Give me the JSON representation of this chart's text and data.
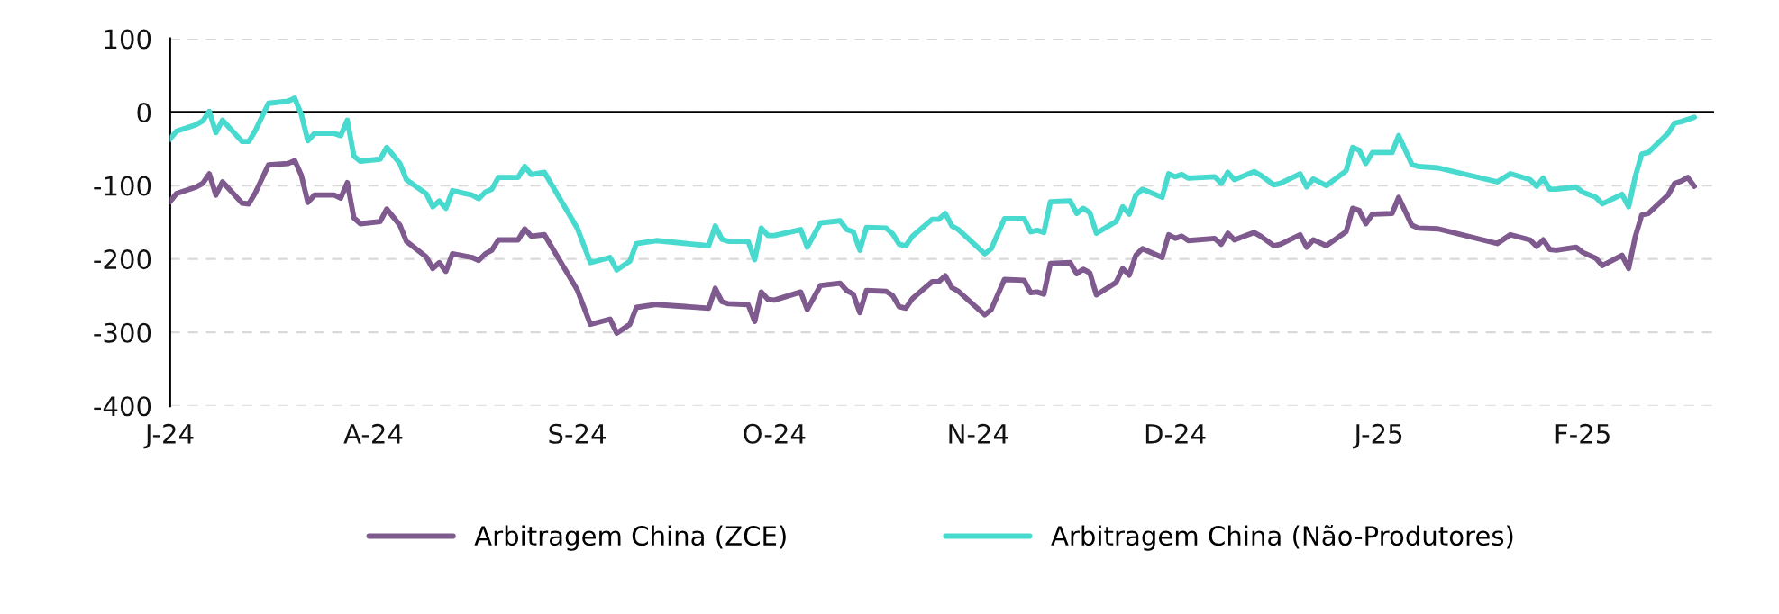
{
  "chart_data": {
    "type": "line",
    "xlim": [
      "2024-07-01",
      "2025-02-21"
    ],
    "xticks": [
      {
        "value": "2024-07-01",
        "label": "J-24"
      },
      {
        "value": "2024-08-01",
        "label": "A-24"
      },
      {
        "value": "2024-09-01",
        "label": "S-24"
      },
      {
        "value": "2024-10-01",
        "label": "O-24"
      },
      {
        "value": "2024-11-01",
        "label": "N-24"
      },
      {
        "value": "2024-12-01",
        "label": "D-24"
      },
      {
        "value": "2025-01-01",
        "label": "J-25"
      },
      {
        "value": "2025-02-01",
        "label": "F-25"
      }
    ],
    "ylim": [
      -400,
      100
    ],
    "yticks": [
      -400,
      -300,
      -200,
      -100,
      0,
      100
    ],
    "grid": "y",
    "legend": "bottom",
    "line_style": "solid",
    "marker": "none",
    "ref_lines": [
      {
        "axis": "y",
        "value": 0,
        "color": "#000000"
      }
    ],
    "series": [
      {
        "name": "Arbitragem China (ZCE)",
        "color": "#7f5a8f",
        "x": [
          "2024-07-01",
          "2024-07-02",
          "2024-07-05",
          "2024-07-06",
          "2024-07-07",
          "2024-07-08",
          "2024-07-09",
          "2024-07-12",
          "2024-07-13",
          "2024-07-14",
          "2024-07-16",
          "2024-07-19",
          "2024-07-20",
          "2024-07-21",
          "2024-07-22",
          "2024-07-23",
          "2024-07-26",
          "2024-07-27",
          "2024-07-28",
          "2024-07-29",
          "2024-07-30",
          "2024-08-02",
          "2024-08-03",
          "2024-08-05",
          "2024-08-06",
          "2024-08-09",
          "2024-08-10",
          "2024-08-11",
          "2024-08-12",
          "2024-08-13",
          "2024-08-16",
          "2024-08-17",
          "2024-08-18",
          "2024-08-19",
          "2024-08-20",
          "2024-08-23",
          "2024-08-24",
          "2024-08-25",
          "2024-08-27",
          "2024-09-01",
          "2024-09-03",
          "2024-09-06",
          "2024-09-07",
          "2024-09-09",
          "2024-09-10",
          "2024-09-13",
          "2024-09-21",
          "2024-09-22",
          "2024-09-23",
          "2024-09-24",
          "2024-09-27",
          "2024-09-28",
          "2024-09-29",
          "2024-09-30",
          "2024-10-01",
          "2024-10-05",
          "2024-10-06",
          "2024-10-08",
          "2024-10-11",
          "2024-10-12",
          "2024-10-13",
          "2024-10-14",
          "2024-10-15",
          "2024-10-18",
          "2024-10-19",
          "2024-10-20",
          "2024-10-21",
          "2024-10-22",
          "2024-10-25",
          "2024-10-26",
          "2024-10-27",
          "2024-10-28",
          "2024-10-29",
          "2024-11-02",
          "2024-11-03",
          "2024-11-05",
          "2024-11-08",
          "2024-11-09",
          "2024-11-10",
          "2024-11-11",
          "2024-11-12",
          "2024-11-15",
          "2024-11-16",
          "2024-11-17",
          "2024-11-18",
          "2024-11-19",
          "2024-11-22",
          "2024-11-23",
          "2024-11-24",
          "2024-11-25",
          "2024-11-26",
          "2024-11-29",
          "2024-11-30",
          "2024-12-01",
          "2024-12-02",
          "2024-12-03",
          "2024-12-07",
          "2024-12-08",
          "2024-12-09",
          "2024-12-10",
          "2024-12-13",
          "2024-12-14",
          "2024-12-16",
          "2024-12-17",
          "2024-12-20",
          "2024-12-21",
          "2024-12-22",
          "2024-12-24",
          "2024-12-27",
          "2024-12-28",
          "2024-12-29",
          "2024-12-30",
          "2024-12-31",
          "2025-01-03",
          "2025-01-04",
          "2025-01-06",
          "2025-01-07",
          "2025-01-10",
          "2025-01-19",
          "2025-01-21",
          "2025-01-24",
          "2025-01-25",
          "2025-01-26",
          "2025-01-27",
          "2025-01-28",
          "2025-01-31",
          "2025-02-01",
          "2025-02-03",
          "2025-02-04",
          "2025-02-07",
          "2025-02-08",
          "2025-02-09",
          "2025-02-10",
          "2025-02-11",
          "2025-02-14",
          "2025-02-15",
          "2025-02-16",
          "2025-02-17",
          "2025-02-18"
        ],
        "values": [
          -122,
          -111,
          -102,
          -97,
          -84,
          -113,
          -95,
          -124,
          -125,
          -110,
          -72,
          -70,
          -66,
          -86,
          -123,
          -113,
          -113,
          -117,
          -96,
          -144,
          -152,
          -149,
          -132,
          -154,
          -176,
          -197,
          -213,
          -205,
          -217,
          -193,
          -198,
          -202,
          -193,
          -188,
          -174,
          -174,
          -159,
          -169,
          -167,
          -242,
          -289,
          -282,
          -301,
          -289,
          -266,
          -262,
          -267,
          -240,
          -258,
          -261,
          -262,
          -285,
          -245,
          -255,
          -256,
          -245,
          -269,
          -236,
          -233,
          -243,
          -248,
          -273,
          -243,
          -244,
          -250,
          -265,
          -267,
          -254,
          -231,
          -231,
          -223,
          -239,
          -244,
          -276,
          -269,
          -228,
          -229,
          -246,
          -245,
          -248,
          -206,
          -205,
          -220,
          -214,
          -219,
          -249,
          -232,
          -213,
          -222,
          -195,
          -186,
          -198,
          -167,
          -172,
          -169,
          -175,
          -172,
          -180,
          -165,
          -174,
          -164,
          -169,
          -182,
          -180,
          -167,
          -184,
          -174,
          -182,
          -163,
          -131,
          -134,
          -152,
          -139,
          -138,
          -116,
          -154,
          -158,
          -159,
          -179,
          -167,
          -174,
          -183,
          -174,
          -187,
          -188,
          -184,
          -191,
          -199,
          -209,
          -195,
          -213,
          -170,
          -140,
          -138,
          -113,
          -97,
          -94,
          -89,
          -101
        ]
      },
      {
        "name": "Arbitragem China (Não-Produtores)",
        "color": "#48d9cf",
        "x": [
          "2024-07-01",
          "2024-07-02",
          "2024-07-05",
          "2024-07-06",
          "2024-07-07",
          "2024-07-08",
          "2024-07-09",
          "2024-07-12",
          "2024-07-13",
          "2024-07-14",
          "2024-07-16",
          "2024-07-19",
          "2024-07-20",
          "2024-07-21",
          "2024-07-22",
          "2024-07-23",
          "2024-07-26",
          "2024-07-27",
          "2024-07-28",
          "2024-07-29",
          "2024-07-30",
          "2024-08-02",
          "2024-08-03",
          "2024-08-05",
          "2024-08-06",
          "2024-08-09",
          "2024-08-10",
          "2024-08-11",
          "2024-08-12",
          "2024-08-13",
          "2024-08-16",
          "2024-08-17",
          "2024-08-18",
          "2024-08-19",
          "2024-08-20",
          "2024-08-23",
          "2024-08-24",
          "2024-08-25",
          "2024-08-27",
          "2024-09-01",
          "2024-09-03",
          "2024-09-06",
          "2024-09-07",
          "2024-09-09",
          "2024-09-10",
          "2024-09-13",
          "2024-09-21",
          "2024-09-22",
          "2024-09-23",
          "2024-09-24",
          "2024-09-27",
          "2024-09-28",
          "2024-09-29",
          "2024-09-30",
          "2024-10-01",
          "2024-10-05",
          "2024-10-06",
          "2024-10-08",
          "2024-10-11",
          "2024-10-12",
          "2024-10-13",
          "2024-10-14",
          "2024-10-15",
          "2024-10-18",
          "2024-10-19",
          "2024-10-20",
          "2024-10-21",
          "2024-10-22",
          "2024-10-25",
          "2024-10-26",
          "2024-10-27",
          "2024-10-28",
          "2024-10-29",
          "2024-11-02",
          "2024-11-03",
          "2024-11-05",
          "2024-11-08",
          "2024-11-09",
          "2024-11-10",
          "2024-11-11",
          "2024-11-12",
          "2024-11-15",
          "2024-11-16",
          "2024-11-17",
          "2024-11-18",
          "2024-11-19",
          "2024-11-22",
          "2024-11-23",
          "2024-11-24",
          "2024-11-25",
          "2024-11-26",
          "2024-11-29",
          "2024-11-30",
          "2024-12-01",
          "2024-12-02",
          "2024-12-03",
          "2024-12-07",
          "2024-12-08",
          "2024-12-09",
          "2024-12-10",
          "2024-12-13",
          "2024-12-14",
          "2024-12-16",
          "2024-12-17",
          "2024-12-20",
          "2024-12-21",
          "2024-12-22",
          "2024-12-24",
          "2024-12-27",
          "2024-12-28",
          "2024-12-29",
          "2024-12-30",
          "2024-12-31",
          "2025-01-03",
          "2025-01-04",
          "2025-01-06",
          "2025-01-07",
          "2025-01-10",
          "2025-01-19",
          "2025-01-21",
          "2025-01-24",
          "2025-01-25",
          "2025-01-26",
          "2025-01-27",
          "2025-01-28",
          "2025-01-31",
          "2025-02-01",
          "2025-02-03",
          "2025-02-04",
          "2025-02-07",
          "2025-02-08",
          "2025-02-09",
          "2025-02-10",
          "2025-02-11",
          "2025-02-14",
          "2025-02-15",
          "2025-02-16",
          "2025-02-18"
        ],
        "values": [
          -37,
          -26,
          -17,
          -12,
          1,
          -28,
          -11,
          -40,
          -40,
          -25,
          12,
          15,
          19,
          -3,
          -39,
          -29,
          -29,
          -32,
          -11,
          -60,
          -67,
          -64,
          -48,
          -70,
          -92,
          -111,
          -129,
          -121,
          -131,
          -107,
          -113,
          -118,
          -109,
          -105,
          -89,
          -89,
          -74,
          -85,
          -82,
          -158,
          -205,
          -198,
          -215,
          -203,
          -179,
          -175,
          -182,
          -155,
          -173,
          -176,
          -176,
          -201,
          -158,
          -168,
          -168,
          -160,
          -184,
          -151,
          -148,
          -160,
          -163,
          -188,
          -157,
          -158,
          -166,
          -180,
          -182,
          -169,
          -146,
          -146,
          -138,
          -155,
          -160,
          -193,
          -186,
          -145,
          -145,
          -163,
          -161,
          -164,
          -122,
          -121,
          -138,
          -131,
          -137,
          -165,
          -149,
          -129,
          -139,
          -113,
          -105,
          -116,
          -84,
          -88,
          -85,
          -90,
          -88,
          -97,
          -82,
          -92,
          -81,
          -86,
          -99,
          -97,
          -84,
          -102,
          -91,
          -100,
          -80,
          -48,
          -52,
          -70,
          -55,
          -55,
          -32,
          -71,
          -74,
          -76,
          -95,
          -84,
          -92,
          -101,
          -90,
          -105,
          -105,
          -102,
          -109,
          -116,
          -125,
          -112,
          -129,
          -88,
          -57,
          -55,
          -29,
          -15,
          -13,
          -7
        ]
      }
    ]
  }
}
